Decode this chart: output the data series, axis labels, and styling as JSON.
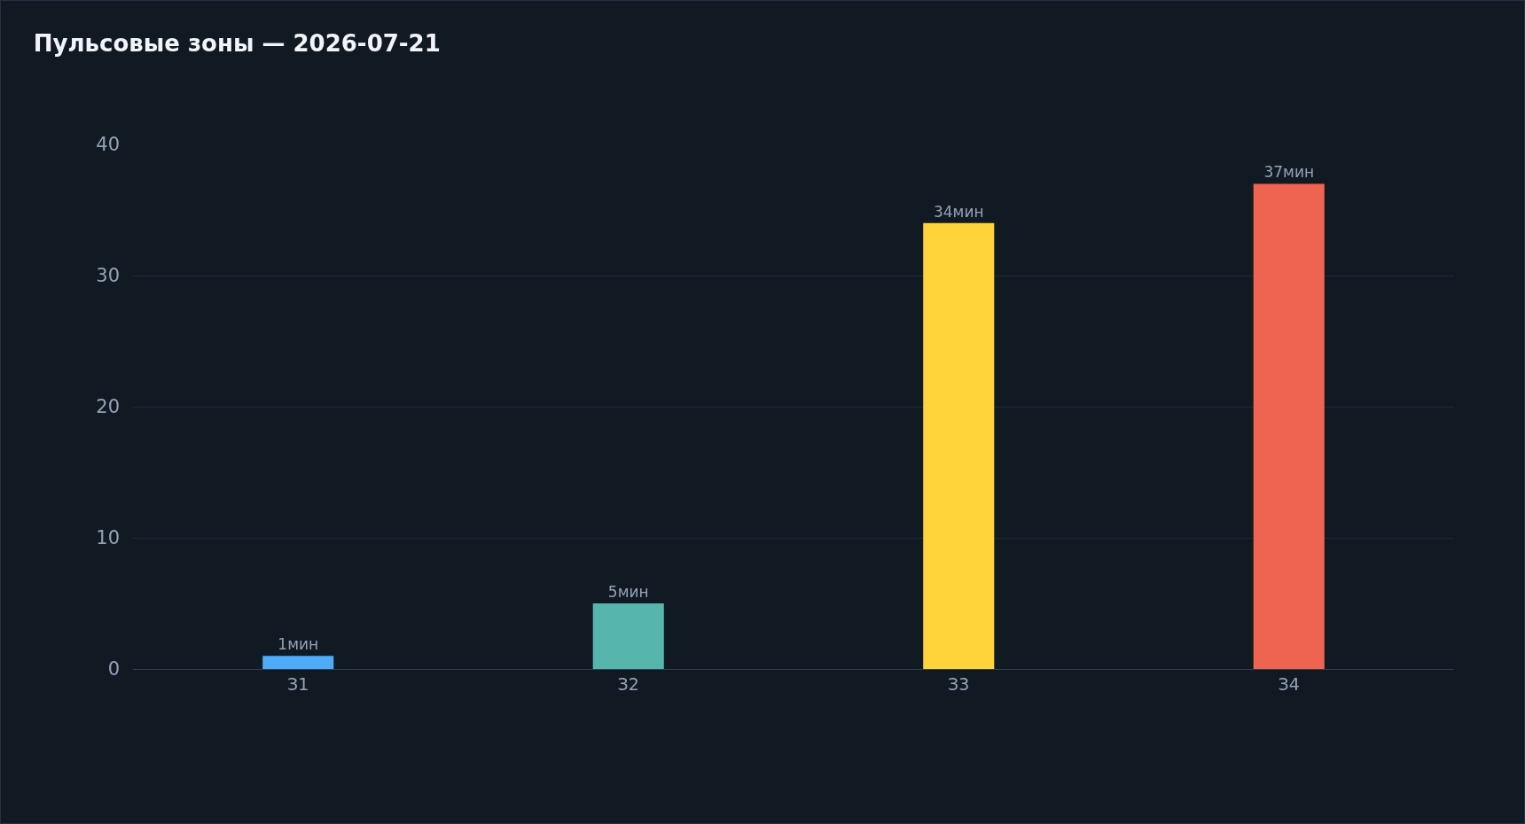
{
  "chart_data": {
    "type": "bar",
    "title": "Пульсовые зоны — 2026-07-21",
    "categories": [
      "З1",
      "З2",
      "З3",
      "З4"
    ],
    "values": [
      1,
      5,
      34,
      37
    ],
    "colors": [
      "#4dabf7",
      "#56b6ae",
      "#ffd43b",
      "#ef6351"
    ],
    "value_labels": [
      "1мин",
      "5мин",
      "34мин",
      "37мин"
    ],
    "ylim": [
      0,
      40
    ],
    "yticks": [
      0,
      10,
      20,
      30,
      40
    ],
    "grid": "y",
    "legend": false
  }
}
